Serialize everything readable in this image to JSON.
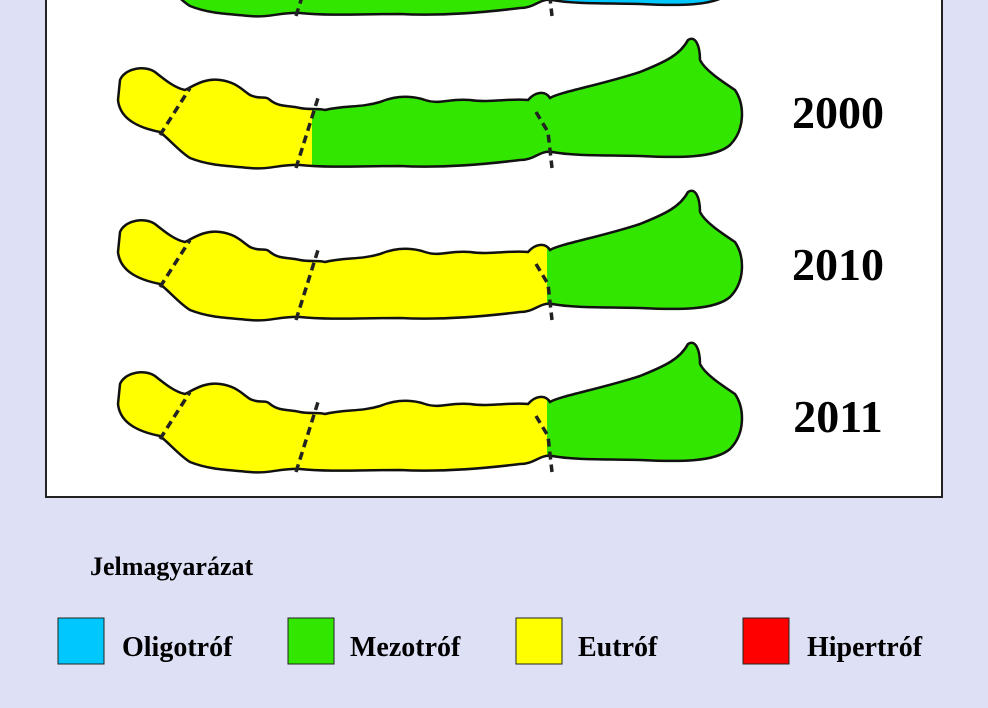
{
  "years": [
    "2000",
    "2010",
    "2011"
  ],
  "legend": {
    "title": "Jelmagyarázat",
    "items": [
      "Oligotróf",
      "Mezotróf",
      "Eutróf",
      "Hipertróf"
    ]
  }
}
